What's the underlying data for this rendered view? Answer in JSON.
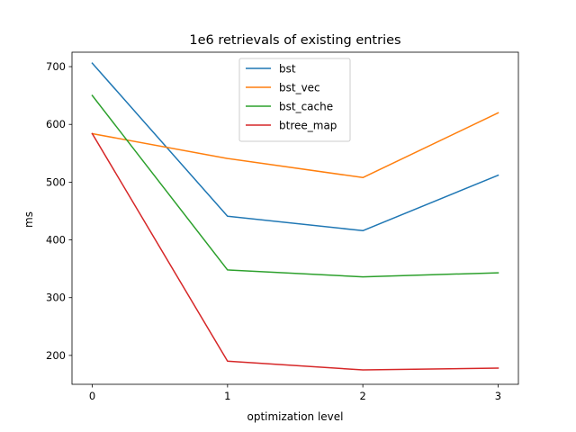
{
  "chart_data": {
    "type": "line",
    "title": "1e6 retrievals of existing entries",
    "xlabel": "optimization level",
    "ylabel": "ms",
    "x": [
      0,
      1,
      2,
      3
    ],
    "xticks": [
      "0",
      "1",
      "2",
      "3"
    ],
    "yticks": [
      "200",
      "300",
      "400",
      "500",
      "600",
      "700"
    ],
    "xlim": [
      -0.15,
      3.15
    ],
    "ylim": [
      150,
      725
    ],
    "grid": false,
    "legend_position": "upper center",
    "series": [
      {
        "name": "bst",
        "color": "#1f77b4",
        "values": [
          706,
          441,
          416,
          512
        ]
      },
      {
        "name": "bst_vec",
        "color": "#ff7f0e",
        "values": [
          584,
          541,
          508,
          620
        ]
      },
      {
        "name": "bst_cache",
        "color": "#2ca02c",
        "values": [
          650,
          348,
          336,
          343
        ]
      },
      {
        "name": "btree_map",
        "color": "#d62728",
        "values": [
          584,
          190,
          175,
          178
        ]
      }
    ]
  }
}
